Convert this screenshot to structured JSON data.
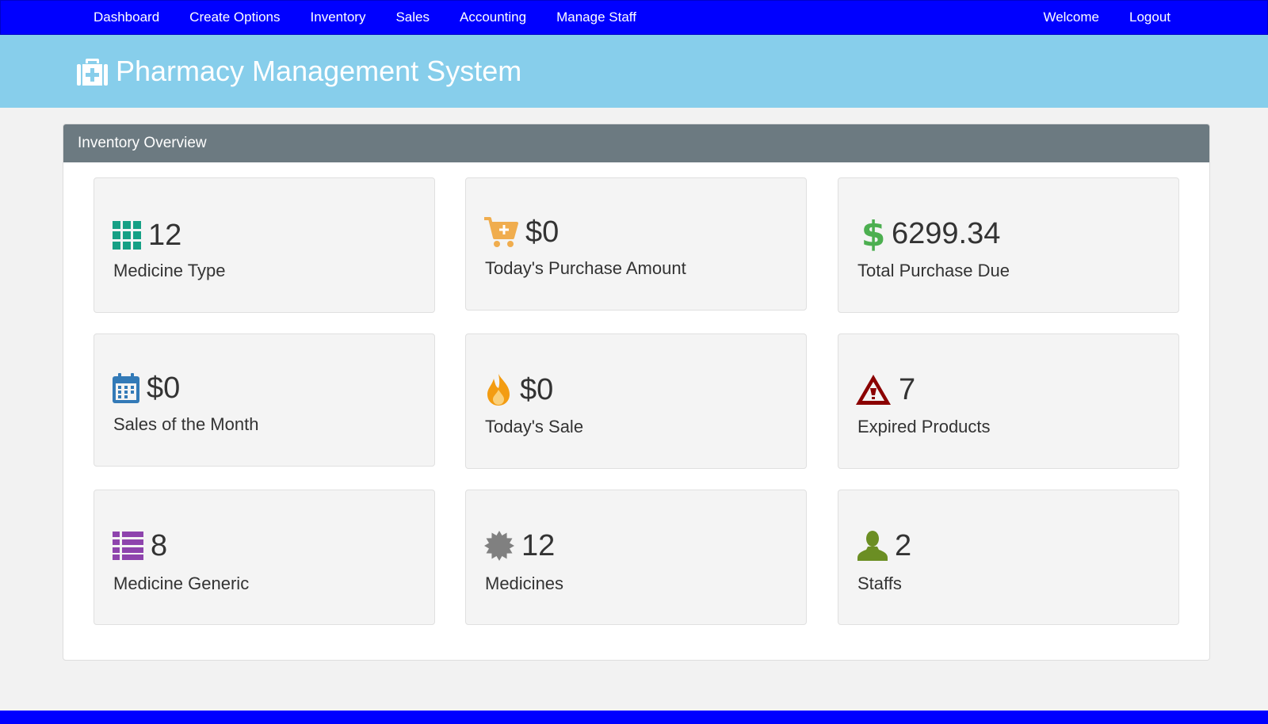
{
  "navbar": {
    "left_items": [
      {
        "label": "Dashboard"
      },
      {
        "label": "Create Options"
      },
      {
        "label": "Inventory"
      },
      {
        "label": "Sales"
      },
      {
        "label": "Accounting"
      },
      {
        "label": "Manage Staff"
      }
    ],
    "right_items": [
      {
        "label": "Welcome"
      },
      {
        "label": "Logout"
      }
    ],
    "background_color": "#0000ff"
  },
  "header": {
    "title": "Pharmacy Management System",
    "icon": "medkit-icon",
    "background_color": "#87ceeb"
  },
  "panel": {
    "heading": "Inventory Overview",
    "cards": [
      {
        "value": "12",
        "label": "Medicine Type",
        "icon": "grid-icon",
        "icon_color": "#16a085"
      },
      {
        "value": "$0",
        "label": "Today's Purchase Amount",
        "icon": "cart-plus-icon",
        "icon_color": "#f0ad4e"
      },
      {
        "value": "6299.34",
        "label": "Total Purchase Due",
        "icon": "dollar-icon",
        "icon_color": "#4caf50"
      },
      {
        "value": "$0",
        "label": "Sales of the Month",
        "icon": "calendar-icon",
        "icon_color": "#337ab7"
      },
      {
        "value": "$0",
        "label": "Today's Sale",
        "icon": "fire-icon",
        "icon_color": "#f39c12"
      },
      {
        "value": "7",
        "label": "Expired Products",
        "icon": "warning-icon",
        "icon_color": "#8b0000"
      },
      {
        "value": "8",
        "label": "Medicine Generic",
        "icon": "list-icon",
        "icon_color": "#8e44ad"
      },
      {
        "value": "12",
        "label": "Medicines",
        "icon": "certificate-icon",
        "icon_color": "#808080"
      },
      {
        "value": "2",
        "label": "Staffs",
        "icon": "user-icon",
        "icon_color": "#6b8e23"
      }
    ]
  }
}
